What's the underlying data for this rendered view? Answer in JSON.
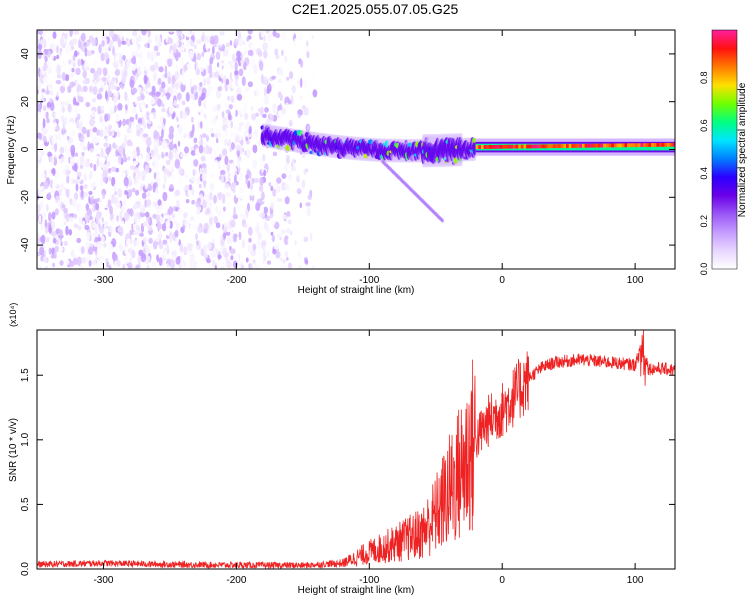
{
  "title": "C2E1.2025.055.07.05.G25",
  "colors": {
    "spectrogram_ramp": [
      "#ffffff",
      "#e7d6ff",
      "#c59cff",
      "#9a55f5",
      "#6a00e8",
      "#2a00ff",
      "#0080ff",
      "#00e5ff",
      "#00ff80",
      "#70ff00",
      "#ffe000",
      "#ff7a00",
      "#ff1010",
      "#ff1fa0"
    ],
    "snr_line": "#ee2222",
    "axis": "#000000"
  },
  "chart_data": [
    {
      "type": "heatmap",
      "title": "C2E1.2025.055.07.05.G25",
      "xlabel": "Height of straight line (km)",
      "ylabel": "Frequency (Hz)",
      "xlim": [
        -350,
        130
      ],
      "ylim": [
        -50,
        50
      ],
      "x_ticks": [
        -300,
        -200,
        -100,
        0,
        100
      ],
      "y_ticks": [
        -40,
        -20,
        0,
        20,
        40
      ],
      "colorbar": {
        "label": "Normalized spectral amplitude",
        "range": [
          0,
          1
        ],
        "ticks": [
          0.0,
          0.2,
          0.4,
          0.6,
          0.8
        ]
      },
      "regions": [
        {
          "name": "diffuse noise",
          "x": [
            -350,
            -140
          ],
          "y": [
            -50,
            50
          ],
          "amplitude": [
            0.0,
            0.2
          ]
        },
        {
          "name": "multipath band",
          "x": [
            -180,
            -20
          ],
          "y_center": [
            6,
            0
          ],
          "width_hz": 10,
          "amplitude": [
            0.2,
            0.75
          ]
        },
        {
          "name": "single tone",
          "x": [
            -20,
            130
          ],
          "y_center": [
            1,
            2
          ],
          "width_hz": 4,
          "amplitude": [
            0.8,
            1.0
          ]
        }
      ]
    },
    {
      "type": "line",
      "xlabel": "Height of straight line (km)",
      "ylabel": "SNR (10 * v/v)",
      "y_multiplier": "(x10⁴)",
      "xlim": [
        -350,
        130
      ],
      "ylim": [
        0,
        18500
      ],
      "x_ticks": [
        -300,
        -200,
        -100,
        0,
        100
      ],
      "y_ticks": [
        0.0,
        0.5,
        1.0,
        1.5
      ],
      "series": [
        {
          "x": [
            -350,
            -300,
            -250,
            -200,
            -150,
            -120,
            -100,
            -80,
            -60,
            -50,
            -40,
            -30,
            -20,
            -10,
            0,
            10,
            20,
            30,
            40,
            60,
            80,
            100,
            106,
            110,
            120,
            130
          ],
          "y": [
            350,
            450,
            350,
            300,
            280,
            450,
            1300,
            2000,
            2800,
            4200,
            6000,
            7800,
            10000,
            11500,
            12300,
            13500,
            14800,
            15600,
            16000,
            16200,
            16000,
            15800,
            17500,
            15500,
            15500,
            15400
          ]
        }
      ]
    }
  ]
}
